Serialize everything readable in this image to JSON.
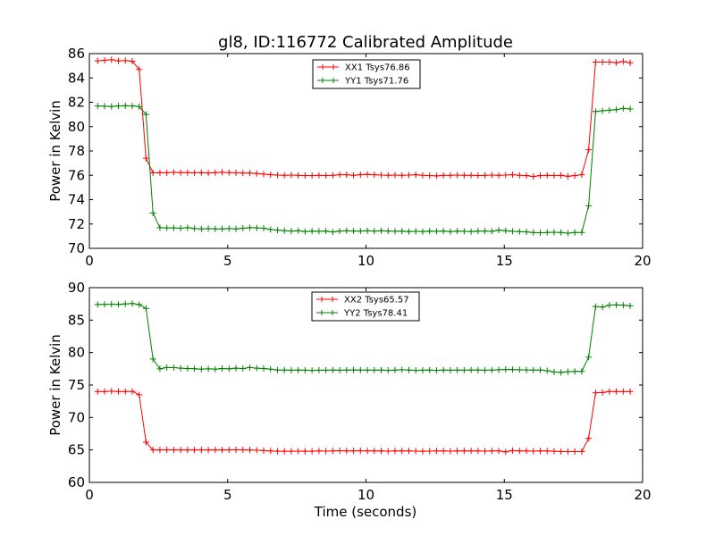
{
  "chart_data": [
    {
      "type": "line",
      "title": "gl8, ID:116772 Calibrated Amplitude",
      "xlabel": "",
      "ylabel": "Power in Kelvin",
      "xlim": [
        0,
        20
      ],
      "ylim": [
        70,
        86
      ],
      "xticks": [
        "0",
        "5",
        "10",
        "15",
        "20"
      ],
      "yticks": [
        "70",
        "72",
        "74",
        "76",
        "78",
        "80",
        "82",
        "84",
        "86"
      ],
      "grid": false,
      "legend_position": "top-center",
      "x": [
        0.3,
        0.55,
        0.8,
        1.05,
        1.3,
        1.55,
        1.8,
        2.05,
        2.3,
        2.55,
        2.8,
        3.05,
        3.3,
        3.55,
        3.8,
        4.05,
        4.3,
        4.55,
        4.8,
        5.05,
        5.3,
        5.55,
        5.8,
        6.05,
        6.3,
        6.55,
        6.8,
        7.05,
        7.3,
        7.55,
        7.8,
        8.05,
        8.3,
        8.55,
        8.8,
        9.05,
        9.3,
        9.55,
        9.8,
        10.05,
        10.3,
        10.55,
        10.8,
        11.05,
        11.3,
        11.55,
        11.8,
        12.05,
        12.3,
        12.55,
        12.8,
        13.05,
        13.3,
        13.55,
        13.8,
        14.05,
        14.3,
        14.55,
        14.8,
        15.05,
        15.3,
        15.55,
        15.8,
        16.05,
        16.3,
        16.55,
        16.8,
        17.05,
        17.3,
        17.55,
        17.8,
        18.05,
        18.3,
        18.55,
        18.8,
        19.05,
        19.3,
        19.55
      ],
      "series": [
        {
          "name": "XX1 Tsys76.86",
          "color": "#ff0000",
          "values": [
            85.4,
            85.45,
            85.5,
            85.4,
            85.42,
            85.38,
            84.7,
            77.4,
            76.2,
            76.22,
            76.2,
            76.25,
            76.22,
            76.22,
            76.2,
            76.22,
            76.18,
            76.22,
            76.25,
            76.22,
            76.2,
            76.18,
            76.18,
            76.15,
            76.1,
            76.05,
            76.02,
            76.0,
            76.02,
            76.0,
            75.98,
            75.98,
            76.0,
            75.98,
            76.0,
            76.05,
            76.05,
            76.0,
            76.05,
            76.08,
            76.05,
            76.02,
            76.0,
            76.02,
            76.0,
            76.02,
            76.05,
            76.0,
            75.98,
            75.95,
            76.0,
            76.0,
            76.02,
            76.0,
            76.0,
            75.98,
            76.0,
            76.02,
            76.0,
            76.02,
            76.05,
            76.0,
            75.98,
            75.9,
            75.98,
            76.0,
            75.98,
            76.0,
            75.92,
            75.98,
            76.05,
            78.1,
            85.3,
            85.3,
            85.3,
            85.25,
            85.35,
            85.25
          ]
        },
        {
          "name": "YY1 Tsys71.76",
          "color": "#008000",
          "values": [
            81.7,
            81.68,
            81.65,
            81.7,
            81.72,
            81.7,
            81.65,
            81.0,
            72.9,
            71.7,
            71.68,
            71.68,
            71.65,
            71.7,
            71.62,
            71.6,
            71.62,
            71.6,
            71.6,
            71.62,
            71.6,
            71.65,
            71.7,
            71.68,
            71.65,
            71.55,
            71.5,
            71.45,
            71.42,
            71.45,
            71.38,
            71.42,
            71.4,
            71.42,
            71.35,
            71.42,
            71.45,
            71.42,
            71.42,
            71.45,
            71.42,
            71.45,
            71.42,
            71.4,
            71.42,
            71.38,
            71.4,
            71.38,
            71.42,
            71.4,
            71.42,
            71.38,
            71.42,
            71.4,
            71.38,
            71.42,
            71.42,
            71.4,
            71.5,
            71.45,
            71.4,
            71.38,
            71.35,
            71.3,
            71.28,
            71.3,
            71.32,
            71.3,
            71.25,
            71.3,
            71.3,
            73.5,
            81.25,
            81.3,
            81.35,
            81.4,
            81.5,
            81.45
          ]
        }
      ]
    },
    {
      "type": "line",
      "title": "",
      "xlabel": "Time (seconds)",
      "ylabel": "Power in Kelvin",
      "xlim": [
        0,
        20
      ],
      "ylim": [
        60,
        90
      ],
      "xticks": [
        "0",
        "5",
        "10",
        "15",
        "20"
      ],
      "yticks": [
        "60",
        "65",
        "70",
        "75",
        "80",
        "85",
        "90"
      ],
      "grid": false,
      "legend_position": "top-center",
      "x": [
        0.3,
        0.55,
        0.8,
        1.05,
        1.3,
        1.55,
        1.8,
        2.05,
        2.3,
        2.55,
        2.8,
        3.05,
        3.3,
        3.55,
        3.8,
        4.05,
        4.3,
        4.55,
        4.8,
        5.05,
        5.3,
        5.55,
        5.8,
        6.05,
        6.3,
        6.55,
        6.8,
        7.05,
        7.3,
        7.55,
        7.8,
        8.05,
        8.3,
        8.55,
        8.8,
        9.05,
        9.3,
        9.55,
        9.8,
        10.05,
        10.3,
        10.55,
        10.8,
        11.05,
        11.3,
        11.55,
        11.8,
        12.05,
        12.3,
        12.55,
        12.8,
        13.05,
        13.3,
        13.55,
        13.8,
        14.05,
        14.3,
        14.55,
        14.8,
        15.05,
        15.3,
        15.55,
        15.8,
        16.05,
        16.3,
        16.55,
        16.8,
        17.05,
        17.3,
        17.55,
        17.8,
        18.05,
        18.3,
        18.55,
        18.8,
        19.05,
        19.3,
        19.55
      ],
      "series": [
        {
          "name": "XX2 Tsys65.57",
          "color": "#ff0000",
          "values": [
            74.0,
            74.0,
            74.05,
            74.0,
            74.0,
            74.02,
            73.5,
            66.2,
            65.0,
            65.0,
            65.02,
            65.0,
            65.0,
            64.98,
            65.0,
            65.0,
            64.98,
            65.0,
            65.0,
            65.0,
            65.02,
            65.0,
            65.0,
            64.95,
            64.9,
            64.85,
            64.8,
            64.8,
            64.8,
            64.82,
            64.8,
            64.8,
            64.85,
            64.82,
            64.85,
            64.88,
            64.85,
            64.85,
            64.88,
            64.85,
            64.85,
            64.85,
            64.82,
            64.85,
            64.85,
            64.85,
            64.82,
            64.8,
            64.82,
            64.85,
            64.85,
            64.82,
            64.85,
            64.85,
            64.85,
            64.85,
            64.82,
            64.85,
            64.85,
            64.7,
            64.9,
            64.85,
            64.85,
            64.82,
            64.85,
            64.85,
            64.8,
            64.75,
            64.75,
            64.75,
            64.75,
            66.8,
            73.8,
            73.85,
            74.0,
            74.0,
            74.0,
            74.0
          ]
        },
        {
          "name": "YY2 Tsys78.41",
          "color": "#008000",
          "values": [
            87.4,
            87.42,
            87.45,
            87.42,
            87.5,
            87.55,
            87.4,
            86.8,
            79.0,
            77.5,
            77.7,
            77.68,
            77.6,
            77.55,
            77.52,
            77.45,
            77.5,
            77.45,
            77.55,
            77.5,
            77.6,
            77.55,
            77.7,
            77.6,
            77.55,
            77.45,
            77.3,
            77.3,
            77.28,
            77.3,
            77.28,
            77.25,
            77.28,
            77.28,
            77.3,
            77.28,
            77.3,
            77.32,
            77.3,
            77.3,
            77.28,
            77.3,
            77.25,
            77.3,
            77.35,
            77.3,
            77.25,
            77.28,
            77.3,
            77.25,
            77.3,
            77.28,
            77.3,
            77.28,
            77.32,
            77.3,
            77.28,
            77.3,
            77.35,
            77.4,
            77.38,
            77.35,
            77.32,
            77.3,
            77.3,
            77.2,
            77.0,
            76.95,
            77.05,
            77.1,
            77.1,
            79.3,
            87.1,
            87.0,
            87.3,
            87.35,
            87.3,
            87.2
          ]
        }
      ]
    }
  ]
}
